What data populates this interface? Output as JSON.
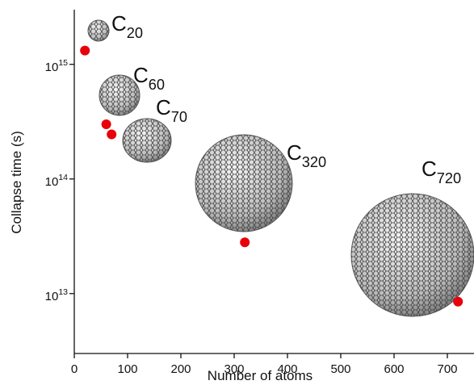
{
  "chart_data": {
    "type": "scatter",
    "x_label": "Number of atoms",
    "y_label": "Collapse time (s)",
    "x": [
      20,
      60,
      70,
      320,
      720
    ],
    "values": [
      1320000000000000.0,
      300000000000000.0,
      245000000000000.0,
      28000000000000.0,
      8500000000000.0
    ],
    "point_labels": [
      "C_20",
      "C_60",
      "C_70",
      "C_320",
      "C_720"
    ],
    "color": "#e8000b",
    "xlim": [
      0,
      750
    ],
    "xticks": [
      0,
      100,
      200,
      300,
      400,
      500,
      600,
      700
    ],
    "ylim": [
      3000000000000.0,
      3000000000000000.0
    ],
    "log_y": true,
    "yticks": [
      {
        "value": 10000000000000.0,
        "label": "10^13"
      },
      {
        "value": 100000000000000.0,
        "label": "10^14"
      },
      {
        "value": 1000000000000000.0,
        "label": "10^15"
      }
    ]
  }
}
